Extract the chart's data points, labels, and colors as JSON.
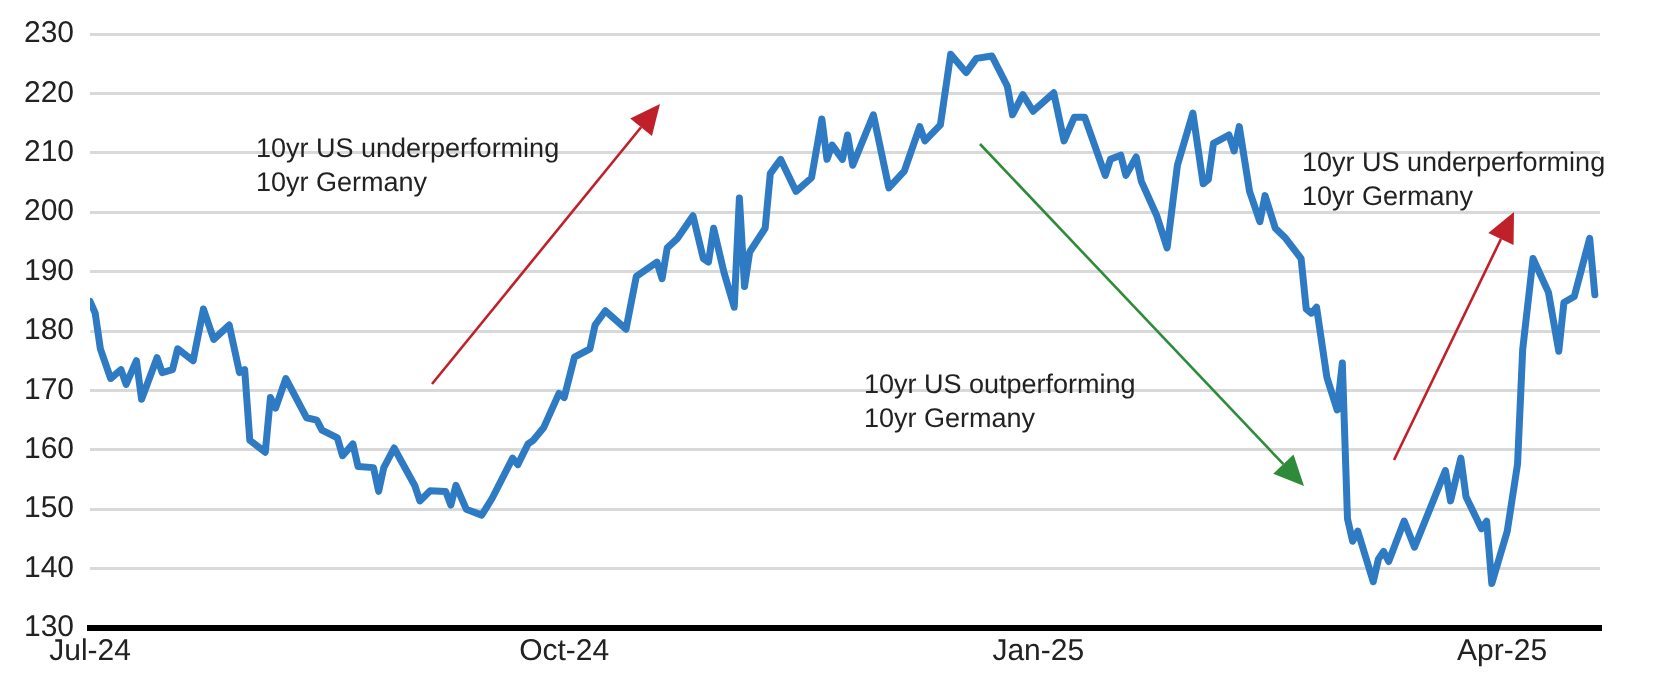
{
  "chart_data": {
    "type": "line",
    "x": [
      "2024-07-01",
      "2024-07-02",
      "2024-07-03",
      "2024-07-05",
      "2024-07-07",
      "2024-07-08",
      "2024-07-10",
      "2024-07-11",
      "2024-07-14",
      "2024-07-15",
      "2024-07-17",
      "2024-07-18",
      "2024-07-21",
      "2024-07-23",
      "2024-07-25",
      "2024-07-28",
      "2024-07-30",
      "2024-07-31",
      "2024-08-01",
      "2024-08-04",
      "2024-08-05",
      "2024-08-06",
      "2024-08-08",
      "2024-08-12",
      "2024-08-14",
      "2024-08-15",
      "2024-08-18",
      "2024-08-19",
      "2024-08-21",
      "2024-08-22",
      "2024-08-25",
      "2024-08-26",
      "2024-08-27",
      "2024-08-29",
      "2024-09-02",
      "2024-09-03",
      "2024-09-05",
      "2024-09-08",
      "2024-09-09",
      "2024-09-10",
      "2024-09-12",
      "2024-09-15",
      "2024-09-17",
      "2024-09-21",
      "2024-09-22",
      "2024-09-24",
      "2024-09-25",
      "2024-09-27",
      "2024-09-30",
      "2024-10-01",
      "2024-10-03",
      "2024-10-06",
      "2024-10-07",
      "2024-10-09",
      "2024-10-13",
      "2024-10-15",
      "2024-10-19",
      "2024-10-20",
      "2024-10-21",
      "2024-10-23",
      "2024-10-26",
      "2024-10-28",
      "2024-10-29",
      "2024-10-30",
      "2024-11-01",
      "2024-11-03",
      "2024-11-04",
      "2024-11-05",
      "2024-11-06",
      "2024-11-09",
      "2024-11-10",
      "2024-11-12",
      "2024-11-15",
      "2024-11-18",
      "2024-11-20",
      "2024-11-21",
      "2024-11-22",
      "2024-11-24",
      "2024-11-25",
      "2024-11-26",
      "2024-11-30",
      "2024-12-03",
      "2024-12-06",
      "2024-12-09",
      "2024-12-10",
      "2024-12-13",
      "2024-12-15",
      "2024-12-18",
      "2024-12-20",
      "2024-12-23",
      "2024-12-26",
      "2024-12-27",
      "2024-12-29",
      "2024-12-31",
      "2025-01-04",
      "2025-01-06",
      "2025-01-08",
      "2025-01-10",
      "2025-01-14",
      "2025-01-15",
      "2025-01-17",
      "2025-01-18",
      "2025-01-20",
      "2025-01-21",
      "2025-01-24",
      "2025-01-26",
      "2025-01-28",
      "2025-01-31",
      "2025-02-02",
      "2025-02-03",
      "2025-02-04",
      "2025-02-07",
      "2025-02-08",
      "2025-02-09",
      "2025-02-11",
      "2025-02-13",
      "2025-02-14",
      "2025-02-16",
      "2025-02-18",
      "2025-02-21",
      "2025-02-22",
      "2025-02-23",
      "2025-02-24",
      "2025-02-26",
      "2025-02-28",
      "2025-03-01",
      "2025-03-02",
      "2025-03-03",
      "2025-03-04",
      "2025-03-07",
      "2025-03-08",
      "2025-03-09",
      "2025-03-10",
      "2025-03-13",
      "2025-03-15",
      "2025-03-21",
      "2025-03-22",
      "2025-03-24",
      "2025-03-25",
      "2025-03-28",
      "2025-03-29",
      "2025-03-30",
      "2025-04-02",
      "2025-04-04",
      "2025-04-05",
      "2025-04-07",
      "2025-04-10",
      "2025-04-12",
      "2025-04-13",
      "2025-04-15",
      "2025-04-18",
      "2025-04-19"
    ],
    "series": [
      {
        "color": "#2e7bc4",
        "values": [
          185,
          183,
          177,
          172,
          173.5,
          171,
          175,
          168.5,
          175.5,
          173,
          173.5,
          177,
          175,
          183.7,
          178.6,
          181,
          173,
          173.5,
          161.6,
          159.6,
          168.8,
          167,
          172,
          165.4,
          165,
          163.3,
          162,
          159,
          161,
          157.2,
          157,
          153,
          157,
          160.3,
          154,
          151.4,
          153.1,
          153,
          150.7,
          154,
          150,
          149,
          151.8,
          158.6,
          157.5,
          161,
          161.6,
          163.7,
          169.5,
          168.8,
          175.6,
          177,
          181,
          183.4,
          180.3,
          189.2,
          191.6,
          188.8,
          194,
          195.6,
          199.4,
          192.2,
          191.6,
          197.3,
          189.9,
          184,
          202.4,
          187.5,
          193.3,
          197.3,
          206.5,
          208.9,
          203.5,
          205.8,
          215.7,
          208.9,
          211.3,
          208.9,
          213,
          207.9,
          216.4,
          204.1,
          206.9,
          214.4,
          212,
          214.7,
          226.6,
          223.5,
          225.9,
          226.3,
          221.2,
          216.4,
          219.8,
          217,
          220.1,
          212,
          216,
          216,
          206.2,
          208.9,
          209.6,
          206.2,
          209.3,
          205.2,
          199.4,
          194,
          207.9,
          216.7,
          204.8,
          205.5,
          211.6,
          213,
          210.3,
          214.4,
          203.5,
          198.4,
          202.8,
          197.3,
          195.6,
          192.2,
          183.7,
          183,
          184,
          172.2,
          166.7,
          174.6,
          148.4,
          144.6,
          146.3,
          137.8,
          141.6,
          142.9,
          141.2,
          148,
          143.6,
          156.5,
          151.4,
          158.6,
          152.1,
          146.7,
          148,
          137.5,
          146.3,
          157.6,
          176.9,
          192.2,
          186.5,
          176.6,
          184.8,
          185.8,
          195.6,
          186.1
        ]
      }
    ],
    "xlim": [
      "2024-07-01",
      "2025-04-20"
    ],
    "xticks": [
      {
        "value": "2024-07-01",
        "label": "Jul-24"
      },
      {
        "value": "2024-10-01",
        "label": "Oct-24"
      },
      {
        "value": "2025-01-01",
        "label": "Jan-25"
      },
      {
        "value": "2025-04-01",
        "label": "Apr-25"
      }
    ],
    "ylim": [
      130,
      230
    ],
    "yticks": [
      130,
      140,
      150,
      160,
      170,
      180,
      190,
      200,
      210,
      220,
      230
    ],
    "grid": "y",
    "legend": false,
    "marker": "none",
    "line_style": "solid",
    "annotations": [
      "10yr US underperforming\n10yr Germany",
      "10yr US outperforming\n10yr Germany",
      "10yr US underperforming\n10yr Germany"
    ]
  }
}
